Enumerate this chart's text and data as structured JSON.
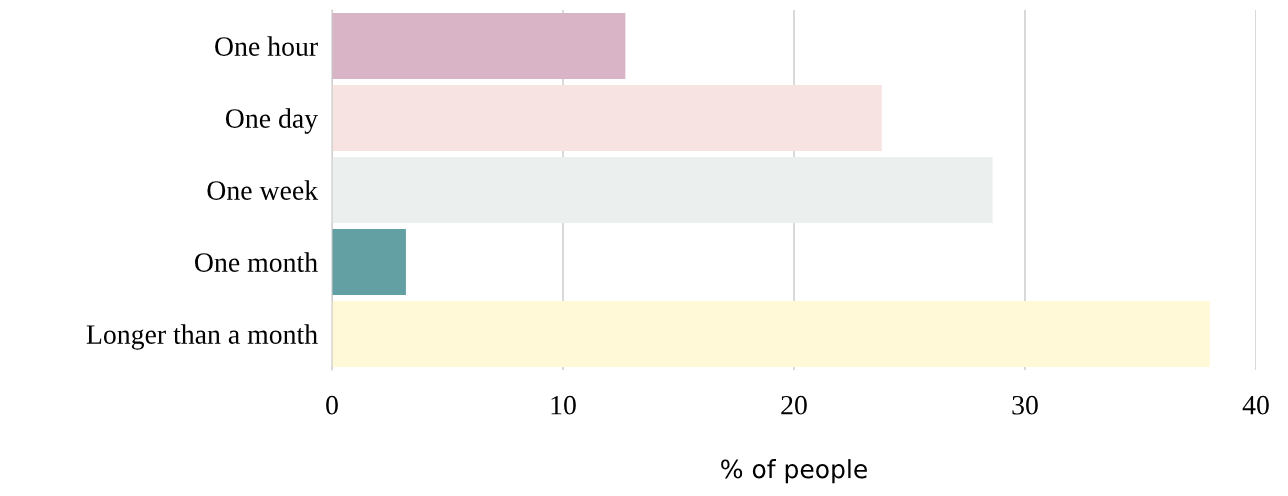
{
  "chart_data": {
    "type": "bar",
    "orientation": "horizontal",
    "xlabel": "% of people",
    "categories": [
      "One hour",
      "One day",
      "One week",
      "One month",
      "Longer than a month"
    ],
    "values": [
      12.7,
      23.8,
      28.6,
      3.2,
      38.0
    ],
    "colors": [
      "#d8b4c6",
      "#f7e3e1",
      "#ebf0ef",
      "#62a0a4",
      "#fff9d8"
    ],
    "xlim": [
      0,
      40
    ],
    "xticks": [
      0,
      10,
      20,
      30,
      40
    ],
    "grid": "x",
    "legend": false
  }
}
